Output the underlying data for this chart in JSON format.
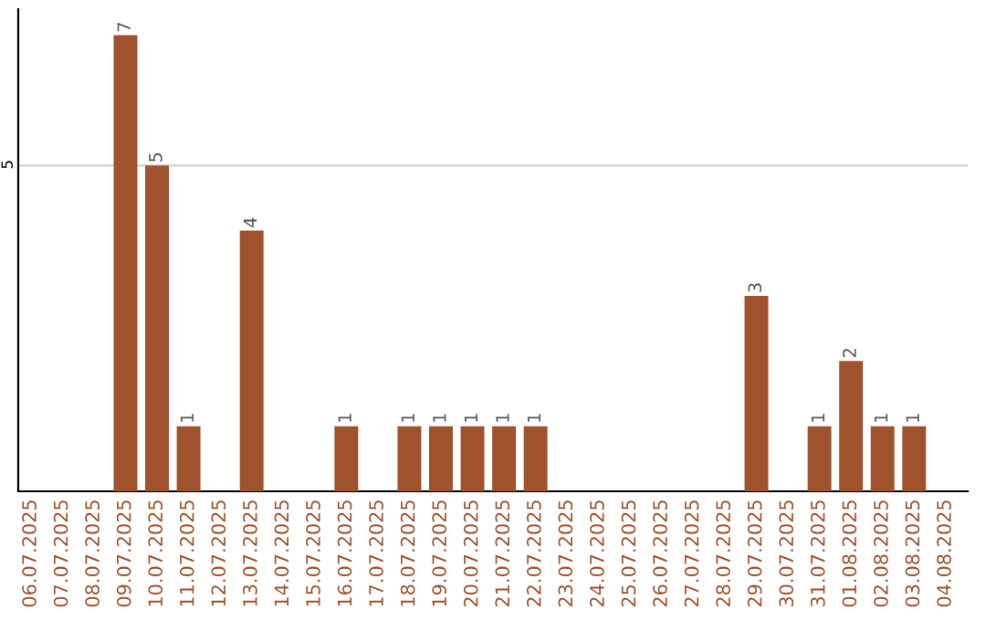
{
  "chart_data": {
    "type": "bar",
    "categories": [
      "06.07.2025",
      "07.07.2025",
      "08.07.2025",
      "09.07.2025",
      "10.07.2025",
      "11.07.2025",
      "12.07.2025",
      "13.07.2025",
      "14.07.2025",
      "15.07.2025",
      "16.07.2025",
      "17.07.2025",
      "18.07.2025",
      "19.07.2025",
      "20.07.2025",
      "21.07.2025",
      "22.07.2025",
      "23.07.2025",
      "24.07.2025",
      "25.07.2025",
      "26.07.2025",
      "27.07.2025",
      "28.07.2025",
      "29.07.2025",
      "30.07.2025",
      "31.07.2025",
      "01.08.2025",
      "02.08.2025",
      "03.08.2025",
      "04.08.2025"
    ],
    "values": [
      0,
      0,
      0,
      7,
      5,
      1,
      0,
      4,
      0,
      0,
      1,
      0,
      1,
      1,
      1,
      1,
      1,
      0,
      0,
      0,
      0,
      0,
      0,
      3,
      0,
      1,
      2,
      1,
      1,
      0
    ],
    "color": "#a0522d",
    "ylim": [
      0,
      7.4
    ],
    "yticks": [
      5
    ],
    "grid": "y",
    "value_labels": [
      null,
      null,
      null,
      "7",
      "5",
      "1",
      null,
      "4",
      null,
      null,
      "1",
      null,
      "1",
      "1",
      "1",
      "1",
      "1",
      null,
      null,
      null,
      null,
      null,
      null,
      "3",
      null,
      "1",
      "2",
      "1",
      "1",
      null
    ]
  }
}
